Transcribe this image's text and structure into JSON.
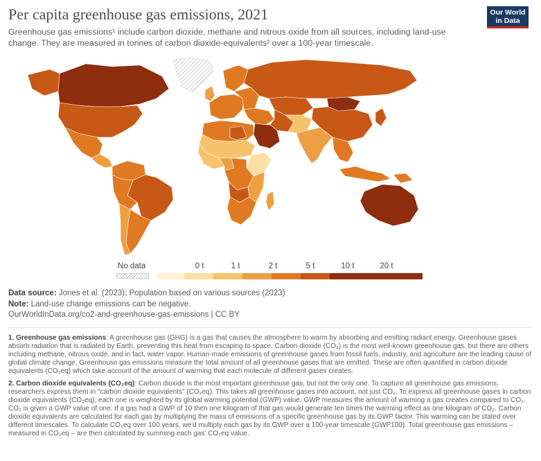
{
  "header": {
    "title": "Per capita greenhouse gas emissions, 2021",
    "subtitle": "Greenhouse gas emissions¹ include carbon dioxide, methane and nitrous oxide from all sources, including land-use change. They are measured in tonnes of carbon dioxide-equivalents² over a 100-year timescale."
  },
  "logo": {
    "line1": "Our World",
    "line2": "in Data"
  },
  "map": {
    "region": "World",
    "colors": {
      "bin0": "#fdf1cf",
      "bin1": "#fbe0a3",
      "bin2": "#f6c36d",
      "bin3": "#ee9f43",
      "bin4": "#e07a22",
      "bin5": "#c85815",
      "bin6": "#8f2d0f",
      "no_data": "#d9d9d9",
      "ocean": "#ffffff"
    },
    "country_values_t": {
      "USA": 17.7,
      "Canada": 21.5,
      "Greenland": null,
      "Mexico": 6.8,
      "Brazil": 12.0,
      "Argentina": 9.4,
      "Russia": 17.1,
      "China": 10.4,
      "India": 2.8,
      "Australia": 22.7,
      "Saudi Arabia": 21.4,
      "Iran": 11.0,
      "Mongolia": 24.0,
      "Kazakhstan": 16.5,
      "DR Congo": 7.2,
      "Nigeria": 2.1,
      "Ethiopia": 1.5,
      "Indonesia": 6.2
    }
  },
  "legend": {
    "no_data_label": "No data",
    "ticks": [
      "0 t",
      "1 t",
      "2 t",
      "5 t",
      "10 t",
      "20 t"
    ]
  },
  "sources": {
    "data_source_label": "Data source:",
    "data_source_text": " Jones et al. (2023); Population based on various sources (2023)",
    "note_label": "Note:",
    "note_text": " Land-use change emissions can be negative.",
    "url_line": "OurWorldInData.org/co2-and-greenhouse-gas-emissions | CC BY"
  },
  "notes": {
    "n1_title": "1. Greenhouse gas emissions",
    "n1_text": ": A greenhouse gas (GHG) is a gas that causes the atmosphere to warm by absorbing and emitting radiant energy. Greenhouse gases absorb radiation that is radiated by Earth, preventing this heat from escaping to space. Carbon dioxide (CO₂) is the most well-known greenhouse gas, but there are others including methane, nitrous oxide, and in fact, water vapor. Human-made emissions of greenhouse gases from fossil fuels, industry, and agriculture are the leading cause of global climate change. Greenhouse gas emissions measure the total amount of all greenhouse gases that are emitted. These are often quantified in carbon dioxide equivalents (CO₂eq) which take account of the amount of warming that each molecule of different gases creates.",
    "n2_title": "2. Carbon dioxide equivalents (CO₂eq)",
    "n2_text": ": Carbon dioxide is the most important greenhouse gas, but not the only one. To capture all greenhouse gas emissions, researchers express them in \"carbon dioxide equivalents\" (CO₂eq). This takes all greenhouse gases into account, not just CO₂. To express all greenhouse gases in carbon dioxide equivalents (CO₂eq), each one is weighted by its global warming potential (GWP) value. GWP measures the amount of warming a gas creates compared to CO₂. CO₂ is given a GWP value of one. If a gas had a GWP of 10 then one kilogram of that gas would generate ten times the warming effect as one kilogram of CO₂. Carbon dioxide equivalents are calculated for each gas by multiplying the mass of emissions of a specific greenhouse gas by its GWP factor. This warming can be stated over different timescales. To calculate CO₂eq over 100 years, we'd multiply each gas by its GWP over a 100-year timescale (GWP100). Total greenhouse gas emissions – measured in CO₂eq – are then calculated by summing each gas' CO₂eq value."
  }
}
